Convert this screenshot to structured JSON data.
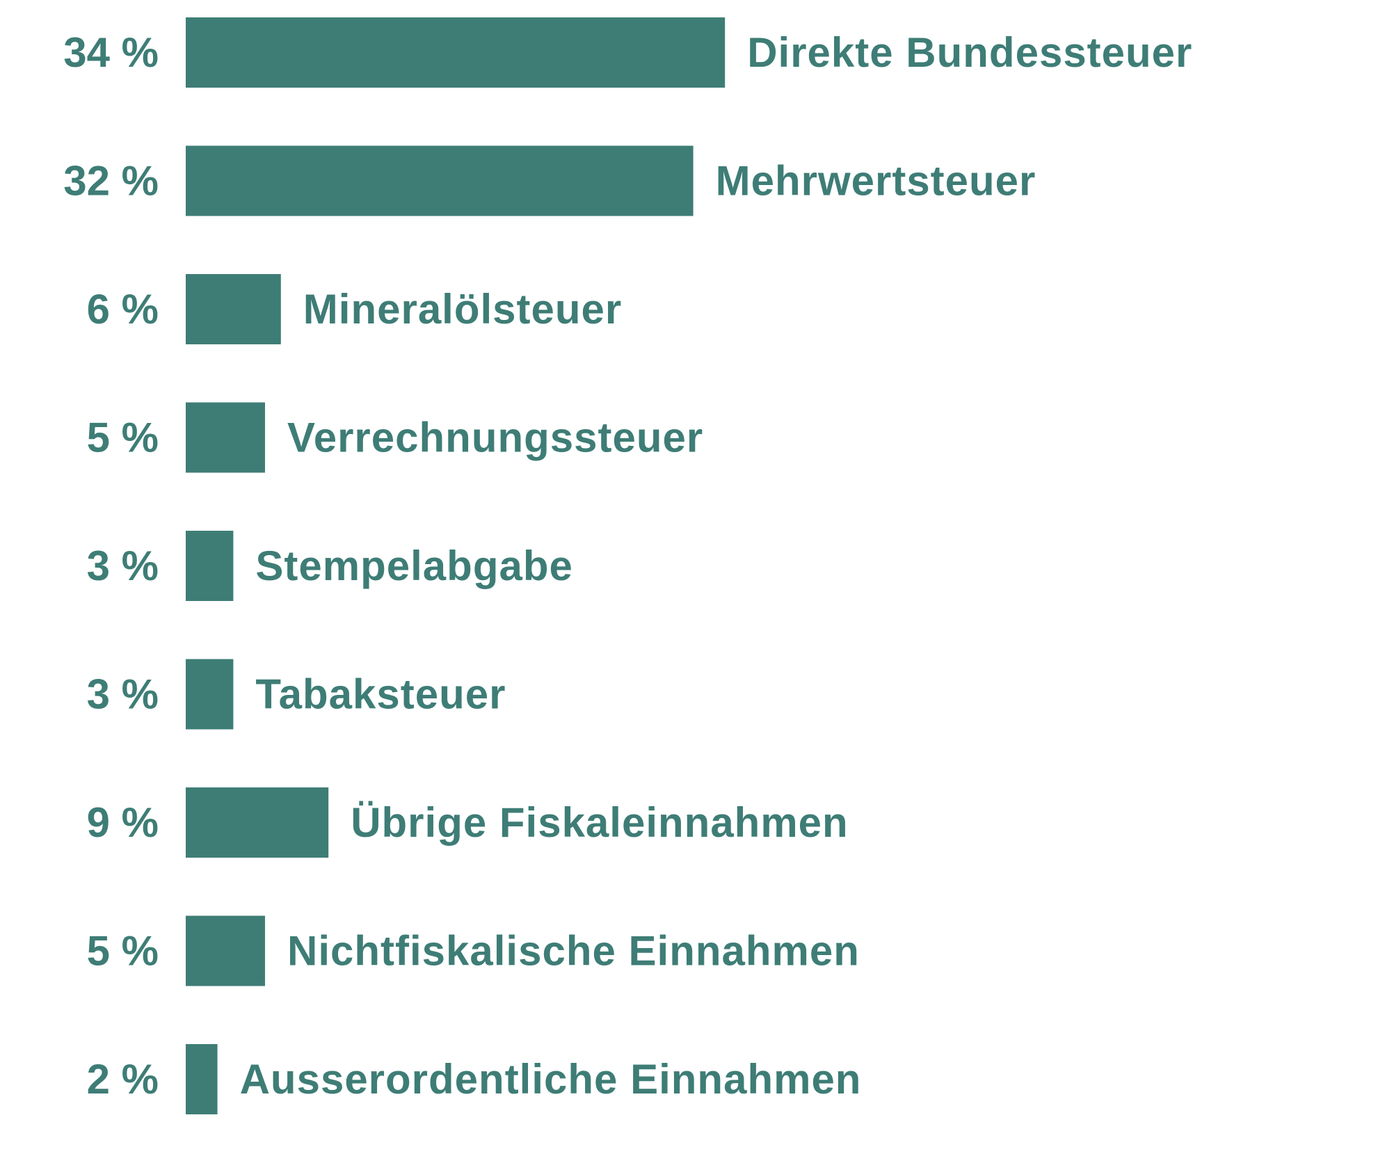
{
  "chart_data": {
    "type": "bar",
    "orientation": "horizontal",
    "categories": [
      "Direkte Bundessteuer",
      "Mehrwertsteuer",
      "Mineralölsteuer",
      "Verrechnungssteuer",
      "Stempelabgabe",
      "Tabaksteuer",
      "Übrige Fiskaleinnahmen",
      "Nichtfiskalische Einnahmen",
      "Ausserordentliche Einnahmen"
    ],
    "values": [
      34,
      32,
      6,
      5,
      3,
      3,
      9,
      5,
      2
    ],
    "value_labels": [
      "34 %",
      "32 %",
      "6 %",
      "5 %",
      "3 %",
      "3 %",
      "9 %",
      "5 %",
      "2 %"
    ],
    "unit": "%",
    "title": "",
    "xlabel": "",
    "ylabel": "",
    "grid": false,
    "legend": "none",
    "color": "#3e7d76",
    "label_color": "#3e7d76"
  }
}
